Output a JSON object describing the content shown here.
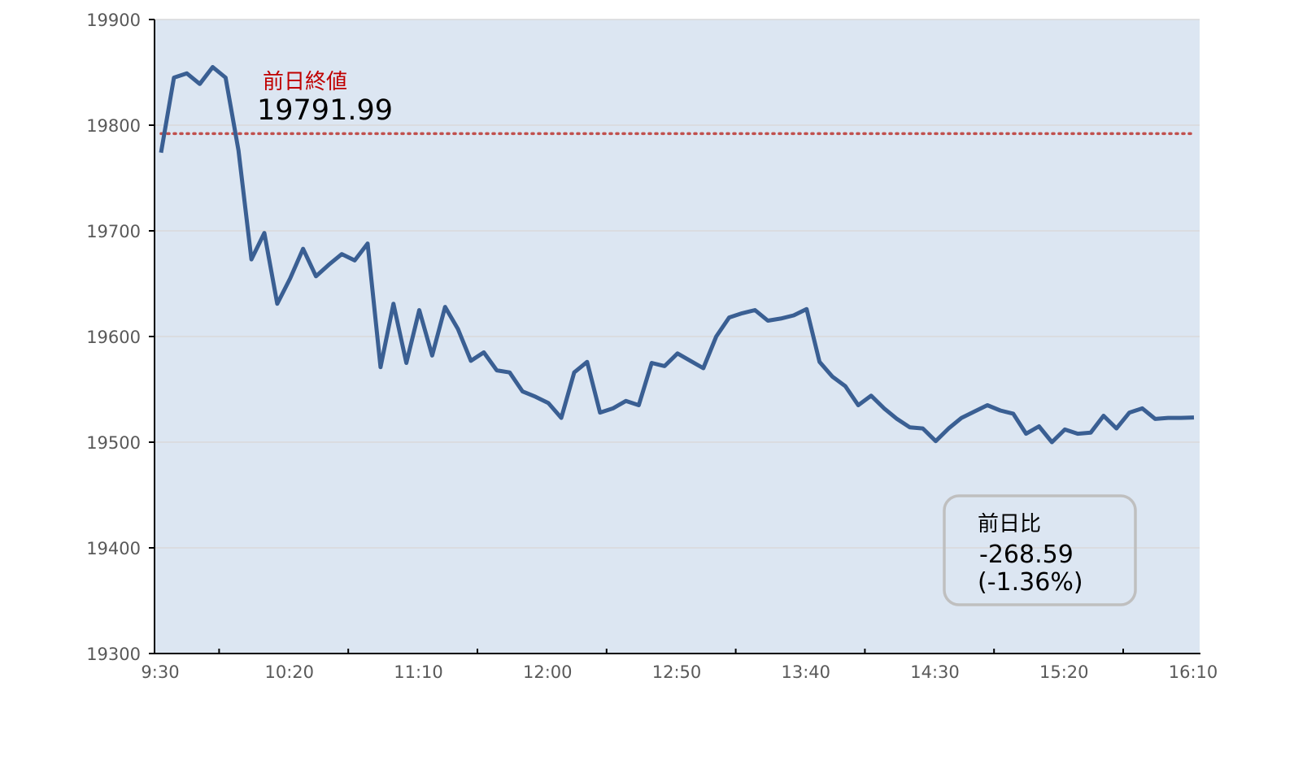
{
  "chart_data": {
    "type": "line",
    "title": "",
    "xlabel": "",
    "ylabel": "",
    "ylim": [
      19300,
      19900
    ],
    "y_ticks": [
      "19300",
      "19400",
      "19500",
      "19600",
      "19700",
      "19800",
      "19900"
    ],
    "x_ticks": [
      "9:30",
      "10:20",
      "11:10",
      "12:00",
      "12:50",
      "13:40",
      "14:30",
      "15:20",
      "16:10"
    ],
    "x_interval_minutes": 5,
    "grid": true,
    "series": [
      {
        "color": "#3a5f93",
        "values": [
          19774,
          19845,
          19849,
          19839,
          19855,
          19845,
          19776,
          19673,
          19698,
          19631,
          19655,
          19683,
          19657,
          19668,
          19678,
          19672,
          19688,
          19571,
          19631,
          19575,
          19625,
          19582,
          19628,
          19607,
          19577,
          19585,
          19568,
          19566,
          19548,
          19543,
          19537,
          19523,
          19566,
          19576,
          19528,
          19532,
          19539,
          19535,
          19575,
          19572,
          19584,
          19577,
          19570,
          19600,
          19618,
          19622,
          19625,
          19615,
          19617,
          19620,
          19626,
          19576,
          19562,
          19553,
          19535,
          19544,
          19532,
          19522,
          19514,
          19513,
          19501,
          19513,
          19523,
          19529,
          19535,
          19530,
          19527,
          19508,
          19515,
          19500,
          19512,
          19508,
          19509,
          19525,
          19513,
          19528,
          19532,
          19522,
          19523,
          19523,
          19523.4
        ]
      }
    ],
    "reference_line": {
      "value": 19791.99,
      "style": "dotted",
      "color": "#c0504d"
    },
    "annotations": {
      "prev_close_label": "前日終値",
      "prev_close_value": "19791.99",
      "change_label": "前日比",
      "change_value": "-268.59",
      "change_pct": "(-1.36%)"
    },
    "colors": {
      "plot_background": "#dce6f2",
      "label_red": "#c00000",
      "grid": "#d9d9d9"
    }
  }
}
